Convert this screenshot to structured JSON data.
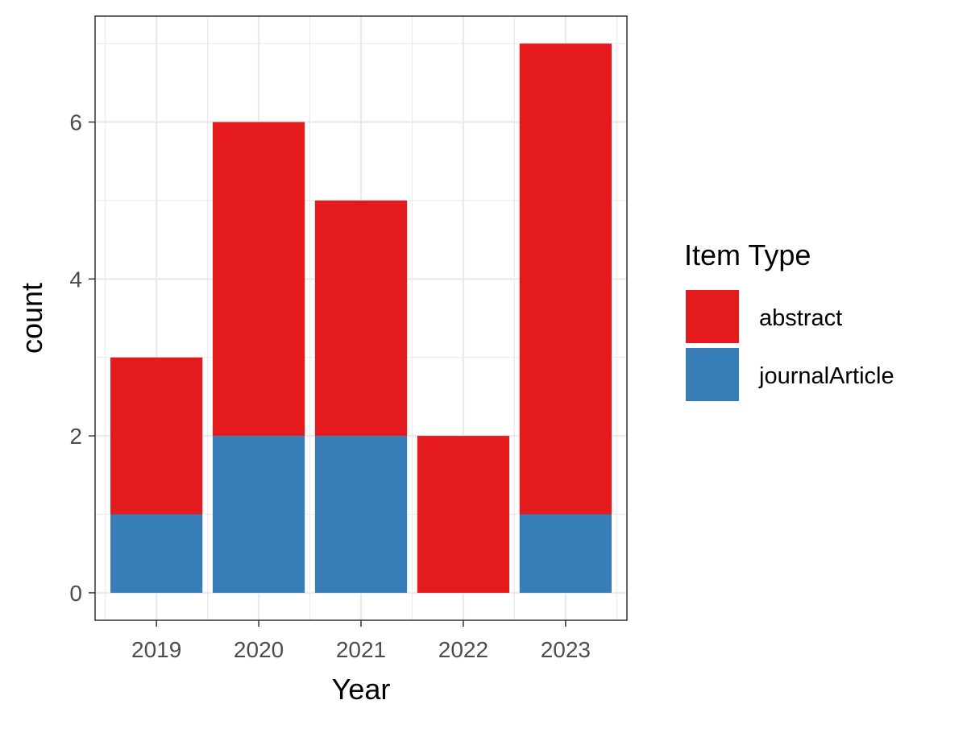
{
  "chart_data": {
    "type": "bar",
    "stacked": true,
    "categories": [
      "2019",
      "2020",
      "2021",
      "2022",
      "2023"
    ],
    "series": [
      {
        "name": "journalArticle",
        "color": "#377EB8",
        "values": [
          1,
          2,
          2,
          0,
          1
        ]
      },
      {
        "name": "abstract",
        "color": "#E41A1C",
        "values": [
          2,
          4,
          3,
          2,
          6
        ]
      }
    ],
    "xlabel": "Year",
    "ylabel": "count",
    "ylim": [
      -0.35,
      7.35
    ],
    "yticks": [
      0,
      2,
      4,
      6
    ],
    "grid": true,
    "legend": {
      "title": "Item Type",
      "position": "right",
      "entries": [
        {
          "label": "abstract",
          "color": "#E41A1C"
        },
        {
          "label": "journalArticle",
          "color": "#377EB8"
        }
      ]
    }
  }
}
